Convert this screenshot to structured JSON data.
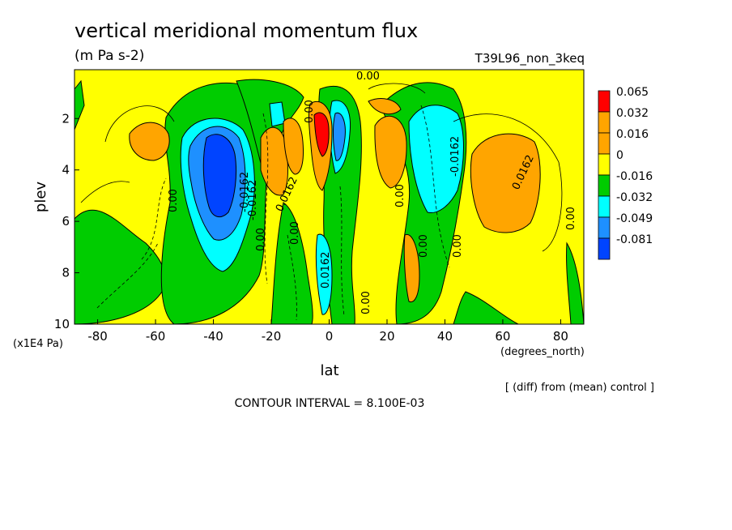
{
  "chart_data": {
    "type": "heatmap",
    "title": "vertical meridional momentum flux",
    "subtitle": "(m Pa s-2)",
    "run_label": "T39L96_non_3keq",
    "xlabel": "lat",
    "x_units": "(degrees_north)",
    "ylabel": "plev",
    "y_units": "(x1E4 Pa)",
    "xlim": [
      -88,
      88
    ],
    "ylim": [
      10,
      0.1
    ],
    "x_ticks": [
      -80,
      -60,
      -40,
      -20,
      0,
      20,
      40,
      60,
      80
    ],
    "y_ticks": [
      2,
      4,
      6,
      8,
      10
    ],
    "legend_levels": [
      "0.065",
      "0.032",
      "0.016",
      "0",
      "-0.016",
      "-0.032",
      "-0.049",
      "-0.081"
    ],
    "legend_colors": [
      "#ff0000",
      "#ffa500",
      "#ffa500",
      "#ffff00",
      "#00cc00",
      "#00ffff",
      "#1e90ff",
      "#0044ff"
    ],
    "footer": "CONTOUR INTERVAL = 8.100E-03",
    "note": "[ (diff) from (mean) control ]",
    "contour_labels": [
      "0.00",
      "-0.0162",
      "0.0162",
      "-0.0162",
      "0.0162",
      "0.00",
      "0.00",
      "0.00",
      "0.00",
      "0.00",
      "0.00",
      "-0.0162",
      "0.00",
      "0.00",
      "0.00",
      "0.00",
      "0.0162",
      "0.00"
    ],
    "features": [
      {
        "name": "minimum-sh-midlat",
        "lat": -38,
        "plev": 4.2,
        "value": -0.081
      },
      {
        "name": "maximum-sh-high",
        "lat": -62,
        "plev": 3.0,
        "value": 0.032
      },
      {
        "name": "maximum-sh-sub",
        "lat": -14,
        "plev": 3.0,
        "value": 0.032
      },
      {
        "name": "maximum-equator",
        "lat": -2,
        "plev": 2.5,
        "value": 0.065
      },
      {
        "name": "minimum-equator-n",
        "lat": 5,
        "plev": 2.8,
        "value": -0.049
      },
      {
        "name": "maximum-nh-sub",
        "lat": 24,
        "plev": 3.5,
        "value": 0.032
      },
      {
        "name": "minimum-nh-midlat",
        "lat": 38,
        "plev": 3.5,
        "value": -0.032
      },
      {
        "name": "maximum-nh-high",
        "lat": 58,
        "plev": 4.3,
        "value": 0.032
      }
    ]
  }
}
